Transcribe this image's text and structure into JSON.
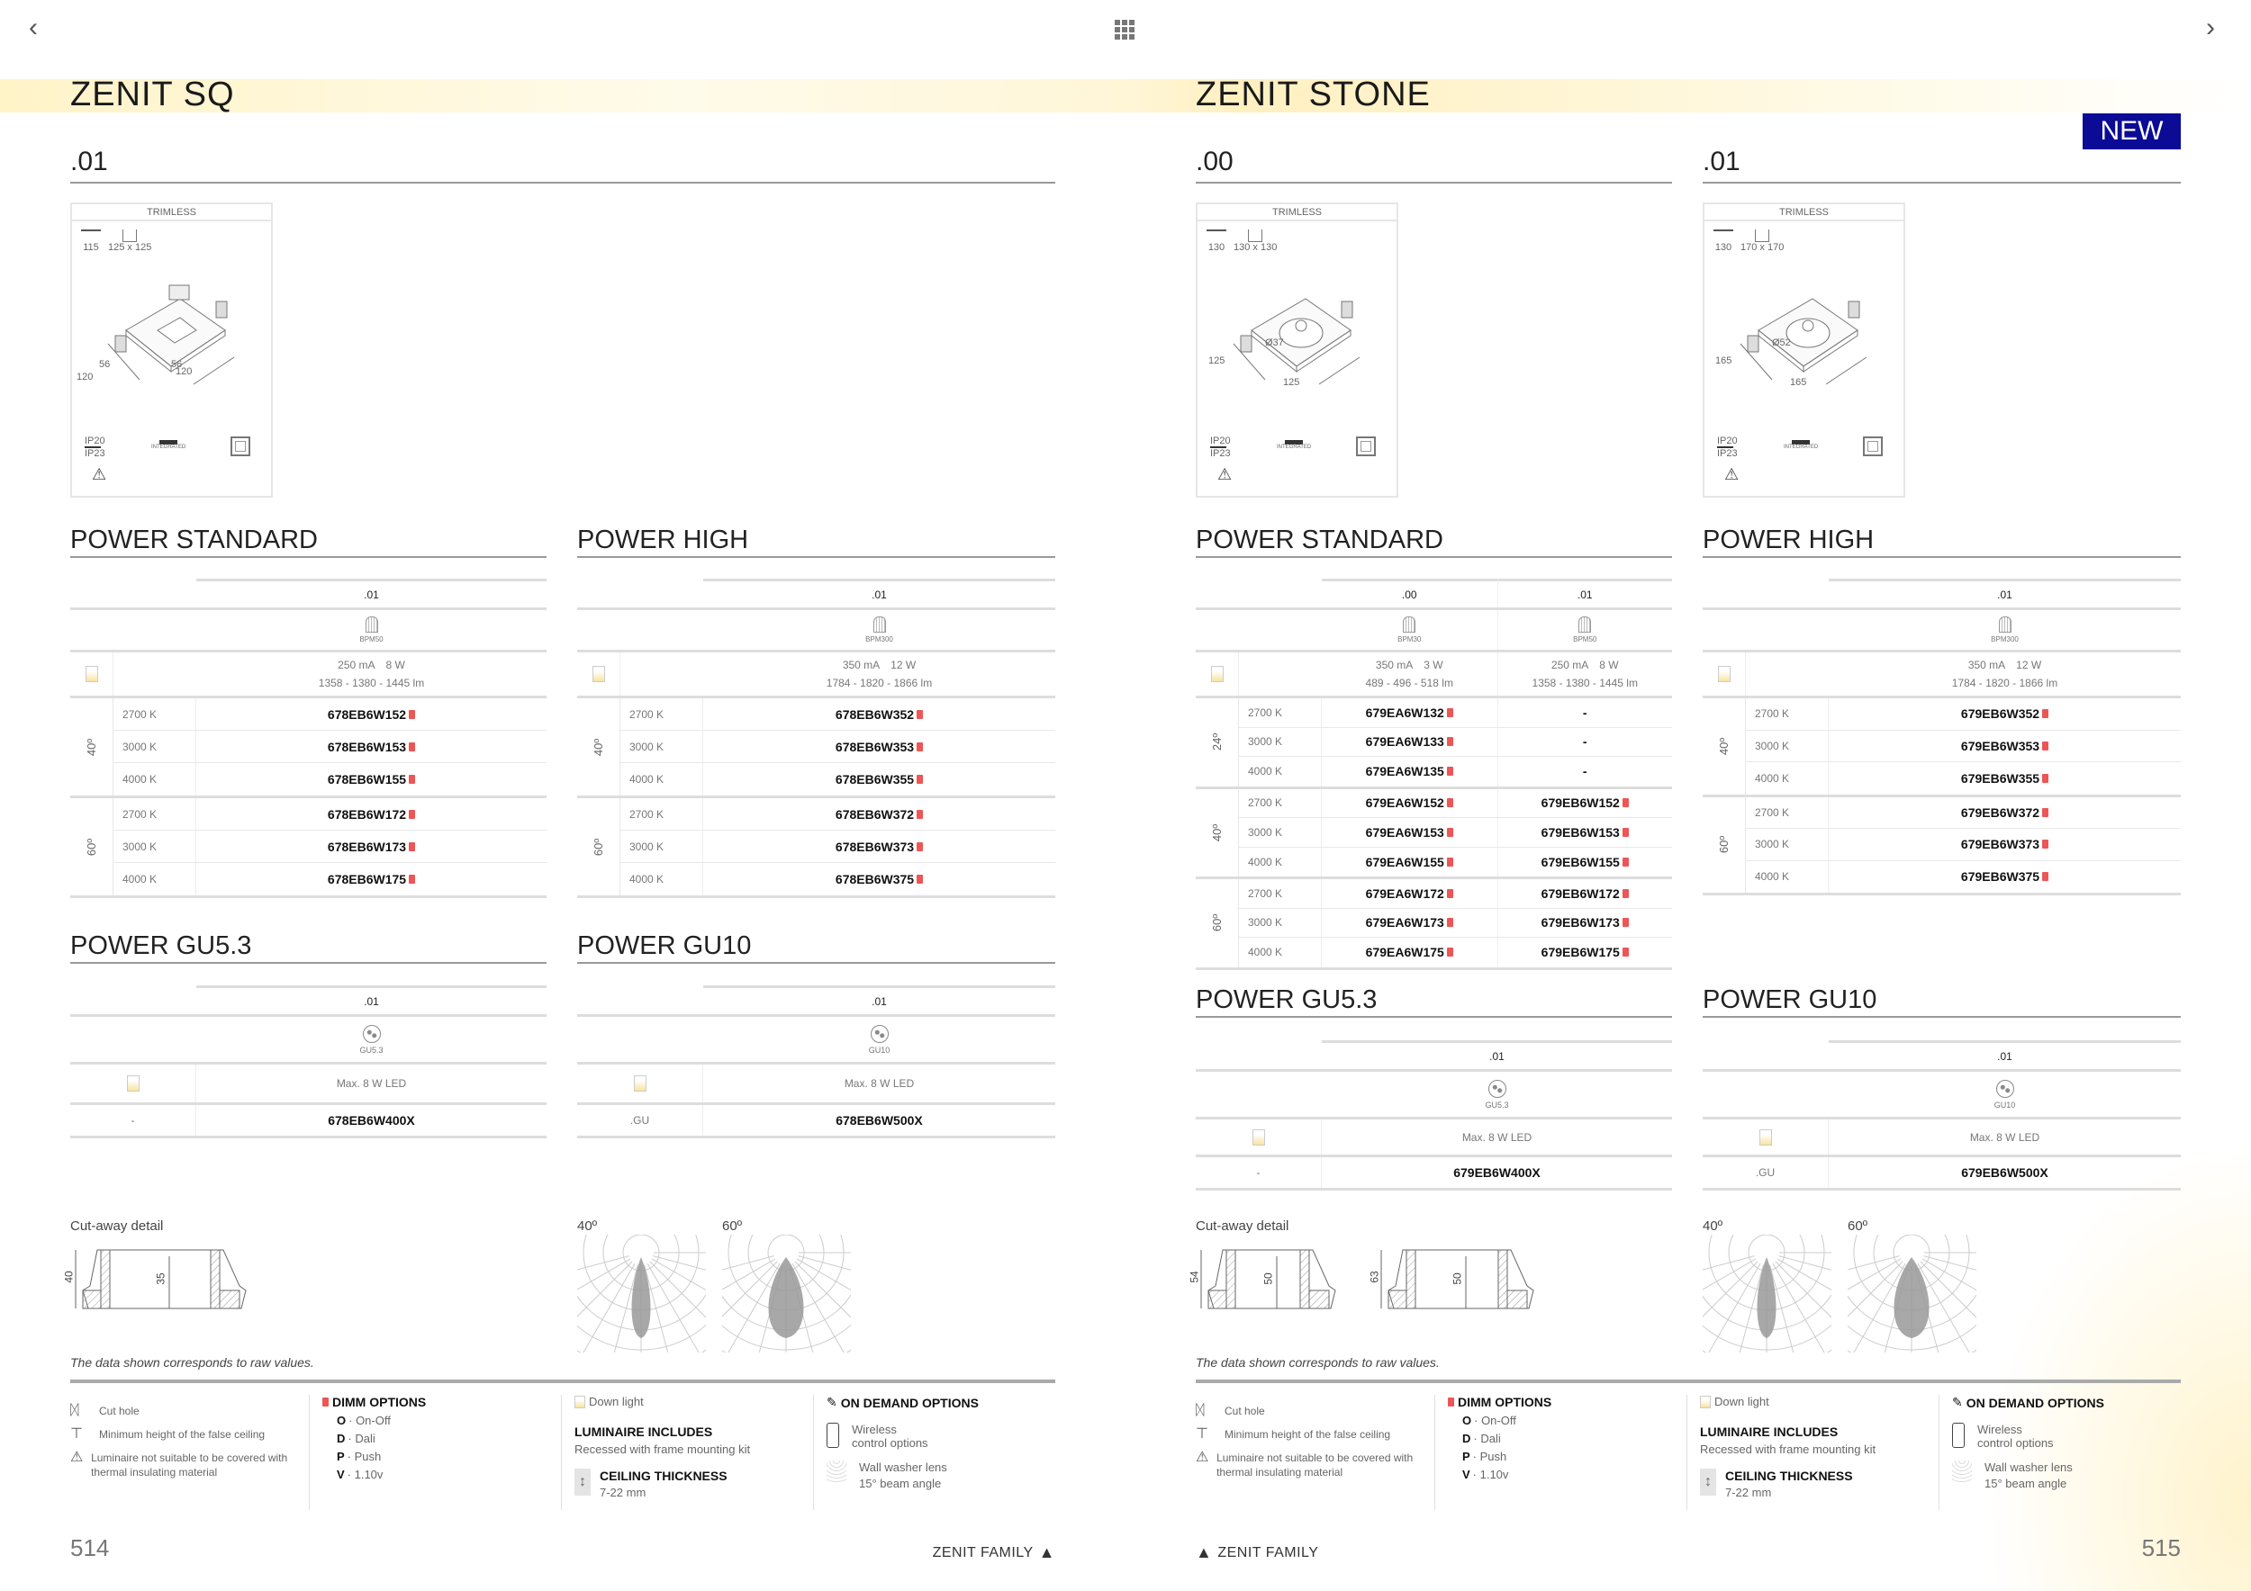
{
  "nav": {
    "prev_icon": "chevron-left-icon",
    "grid_icon": "grid-icon",
    "next_icon": "chevron-right-icon"
  },
  "colors": {
    "dimm": "#e55555",
    "new_badge": "#0b0b96",
    "banner": "#fff3c8"
  },
  "pages": [
    {
      "title": "ZENIT SQ",
      "page_number": "514",
      "family": "ZENIT FAMILY",
      "variants": [
        {
          "code": ".01",
          "card": {
            "type": "TRIMLESS",
            "min_height": "115",
            "cut_hole": "125 x 125",
            "dims": [
              "56",
              "56",
              "120",
              "120"
            ],
            "ip_top": "IP20",
            "ip_bottom": "IP23",
            "driver": "INTEGRATED"
          }
        }
      ],
      "power_standard": {
        "title": "POWER STANDARD",
        "columns": [
          {
            "code": ".01",
            "driver": "BPM50",
            "current": "250 mA",
            "power": "8 W",
            "lumen": "1358 - 1380 - 1445 lm"
          }
        ],
        "groups": [
          {
            "angle": "40º",
            "rows": [
              {
                "cct": "2700 K",
                "codes": [
                  "678EB6W152"
                ]
              },
              {
                "cct": "3000 K",
                "codes": [
                  "678EB6W153"
                ]
              },
              {
                "cct": "4000 K",
                "codes": [
                  "678EB6W155"
                ]
              }
            ]
          },
          {
            "angle": "60º",
            "rows": [
              {
                "cct": "2700 K",
                "codes": [
                  "678EB6W172"
                ]
              },
              {
                "cct": "3000 K",
                "codes": [
                  "678EB6W173"
                ]
              },
              {
                "cct": "4000 K",
                "codes": [
                  "678EB6W175"
                ]
              }
            ]
          }
        ]
      },
      "power_high": {
        "title": "POWER HIGH",
        "columns": [
          {
            "code": ".01",
            "driver": "BPM300",
            "current": "350 mA",
            "power": "12 W",
            "lumen": "1784 - 1820 - 1866 lm"
          }
        ],
        "groups": [
          {
            "angle": "40º",
            "rows": [
              {
                "cct": "2700 K",
                "codes": [
                  "678EB6W352"
                ]
              },
              {
                "cct": "3000 K",
                "codes": [
                  "678EB6W353"
                ]
              },
              {
                "cct": "4000 K",
                "codes": [
                  "678EB6W355"
                ]
              }
            ]
          },
          {
            "angle": "60º",
            "rows": [
              {
                "cct": "2700 K",
                "codes": [
                  "678EB6W372"
                ]
              },
              {
                "cct": "3000 K",
                "codes": [
                  "678EB6W373"
                ]
              },
              {
                "cct": "4000 K",
                "codes": [
                  "678EB6W375"
                ]
              }
            ]
          }
        ]
      },
      "power_gu53": {
        "title": "POWER GU5.3",
        "columns": [
          {
            "code": ".01",
            "socket": "GU5.3",
            "max": "Max. 8 W LED"
          }
        ],
        "suffix": "-",
        "codes": [
          "678EB6W400X"
        ]
      },
      "power_gu10": {
        "title": "POWER GU10",
        "columns": [
          {
            "code": ".01",
            "socket": "GU10",
            "max": "Max. 8 W LED"
          }
        ],
        "suffix": ".GU",
        "codes": [
          "678EB6W500X"
        ]
      },
      "cutaway": {
        "label": "Cut-away detail",
        "dims": [
          [
            "40",
            "35"
          ]
        ]
      },
      "beams": [
        "40º",
        "60º"
      ],
      "note": "The data shown corresponds to raw values."
    },
    {
      "title": "ZENIT STONE",
      "badge": "NEW",
      "page_number": "515",
      "family": "ZENIT FAMILY",
      "variants": [
        {
          "code": ".00",
          "card": {
            "type": "TRIMLESS",
            "min_height": "130",
            "cut_hole": "130 x 130",
            "dims": [
              "Ø37",
              "125",
              "125"
            ],
            "ip_top": "IP20",
            "ip_bottom": "IP23",
            "driver": "INTEGRATED"
          }
        },
        {
          "code": ".01",
          "card": {
            "type": "TRIMLESS",
            "min_height": "130",
            "cut_hole": "170 x 170",
            "dims": [
              "Ø52",
              "165",
              "165"
            ],
            "ip_top": "IP20",
            "ip_bottom": "IP23",
            "driver": "INTEGRATED"
          }
        }
      ],
      "power_standard": {
        "title": "POWER STANDARD",
        "columns": [
          {
            "code": ".00",
            "driver": "BPM30",
            "current": "350 mA",
            "power": "3 W",
            "lumen": "489 - 496 - 518 lm"
          },
          {
            "code": ".01",
            "driver": "BPM50",
            "current": "250 mA",
            "power": "8 W",
            "lumen": "1358 - 1380 - 1445 lm"
          }
        ],
        "groups": [
          {
            "angle": "24º",
            "rows": [
              {
                "cct": "2700 K",
                "codes": [
                  "679EA6W132",
                  "-"
                ]
              },
              {
                "cct": "3000 K",
                "codes": [
                  "679EA6W133",
                  "-"
                ]
              },
              {
                "cct": "4000 K",
                "codes": [
                  "679EA6W135",
                  "-"
                ]
              }
            ]
          },
          {
            "angle": "40º",
            "rows": [
              {
                "cct": "2700 K",
                "codes": [
                  "679EA6W152",
                  "679EB6W152"
                ]
              },
              {
                "cct": "3000 K",
                "codes": [
                  "679EA6W153",
                  "679EB6W153"
                ]
              },
              {
                "cct": "4000 K",
                "codes": [
                  "679EA6W155",
                  "679EB6W155"
                ]
              }
            ]
          },
          {
            "angle": "60º",
            "rows": [
              {
                "cct": "2700 K",
                "codes": [
                  "679EA6W172",
                  "679EB6W172"
                ]
              },
              {
                "cct": "3000 K",
                "codes": [
                  "679EA6W173",
                  "679EB6W173"
                ]
              },
              {
                "cct": "4000 K",
                "codes": [
                  "679EA6W175",
                  "679EB6W175"
                ]
              }
            ]
          }
        ]
      },
      "power_high": {
        "title": "POWER HIGH",
        "columns": [
          {
            "code": ".01",
            "driver": "BPM300",
            "current": "350 mA",
            "power": "12 W",
            "lumen": "1784 - 1820 - 1866 lm"
          }
        ],
        "groups": [
          {
            "angle": "40º",
            "rows": [
              {
                "cct": "2700 K",
                "codes": [
                  "679EB6W352"
                ]
              },
              {
                "cct": "3000 K",
                "codes": [
                  "679EB6W353"
                ]
              },
              {
                "cct": "4000 K",
                "codes": [
                  "679EB6W355"
                ]
              }
            ]
          },
          {
            "angle": "60º",
            "rows": [
              {
                "cct": "2700 K",
                "codes": [
                  "679EB6W372"
                ]
              },
              {
                "cct": "3000 K",
                "codes": [
                  "679EB6W373"
                ]
              },
              {
                "cct": "4000 K",
                "codes": [
                  "679EB6W375"
                ]
              }
            ]
          }
        ]
      },
      "power_gu53": {
        "title": "POWER GU5.3",
        "columns": [
          {
            "code": ".01",
            "socket": "GU5.3",
            "max": "Max. 8 W LED"
          }
        ],
        "suffix": "-",
        "codes": [
          "679EB6W400X"
        ]
      },
      "power_gu10": {
        "title": "POWER GU10",
        "columns": [
          {
            "code": ".01",
            "socket": "GU10",
            "max": "Max. 8 W LED"
          }
        ],
        "suffix": ".GU",
        "codes": [
          "679EB6W500X"
        ]
      },
      "cutaway": {
        "label": "Cut-away detail",
        "dims": [
          [
            "54",
            "50"
          ],
          [
            "63",
            "50"
          ]
        ]
      },
      "beams": [
        "40º",
        "60º"
      ],
      "note": "The data shown corresponds to raw values."
    }
  ],
  "legend": {
    "cut_hole": "Cut hole",
    "min_height": "Minimum height of the false ceiling",
    "insulation": "Luminaire not suitable to be covered with thermal insulating material",
    "dimm_title": "DIMM OPTIONS",
    "dimm": [
      {
        "k": "O",
        "v": "· On-Off"
      },
      {
        "k": "D",
        "v": "· Dali"
      },
      {
        "k": "P",
        "v": "· Push"
      },
      {
        "k": "V",
        "v": "· 1.10v"
      }
    ],
    "down_light": "Down light",
    "includes_title": "LUMINAIRE INCLUDES",
    "includes": "Recessed with frame mounting kit",
    "ceiling_title": "CEILING THICKNESS",
    "ceiling": "7-22 mm",
    "ondemand_title": "ON DEMAND OPTIONS",
    "wireless_1": "Wireless",
    "wireless_2": "control options",
    "washer_1": "Wall washer lens",
    "washer_2": "15° beam angle"
  }
}
